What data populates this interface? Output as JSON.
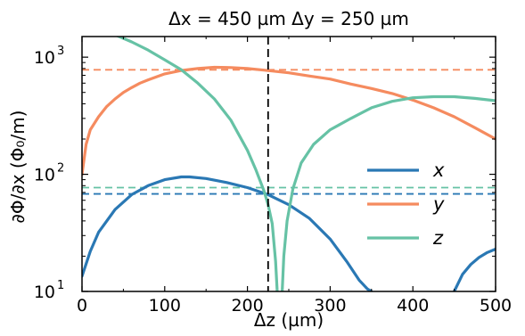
{
  "chart_data": {
    "type": "line",
    "title": "Δx = 450 µm  Δy = 250 µm",
    "xlabel": "Δz (µm)",
    "ylabel": "∂Φ/∂x (Φ₀/m)",
    "xlim": [
      0,
      500
    ],
    "ylim": [
      10,
      1500
    ],
    "yscale": "log",
    "x_ticks": [
      "0",
      "100",
      "200",
      "300",
      "400",
      "500"
    ],
    "y_ticks": [
      {
        "base": "10",
        "exp": "1"
      },
      {
        "base": "10",
        "exp": "2"
      },
      {
        "base": "10",
        "exp": "3"
      }
    ],
    "legend_position": "center-right",
    "vline": {
      "x": 225,
      "color": "#000000",
      "style": "dashed"
    },
    "series": [
      {
        "name": "x",
        "color": "#2a78b4",
        "segments": [
          {
            "x": [
              0,
              10,
              20,
              40,
              60,
              80,
              100,
              120,
              130,
              150,
              175,
              200,
              225,
              250,
              275,
              300,
              320,
              335,
              345,
              350
            ],
            "y": [
              13.5,
              22,
              32,
              50,
              67,
              80,
              90,
              95,
              95,
              92,
              85,
              77,
              67,
              55,
              42,
              28,
              18,
              12.5,
              10.5,
              10
            ]
          },
          {
            "x": [
              450,
              460,
              470,
              480,
              490,
              500
            ],
            "y": [
              10,
              14,
              17,
              19.5,
              21.5,
              23
            ]
          }
        ],
        "reference": 68
      },
      {
        "name": "y",
        "color": "#f58b5f",
        "segments": [
          {
            "x": [
              0,
              5,
              10,
              20,
              30,
              40,
              50,
              60,
              70,
              80,
              90,
              100,
              120,
              140,
              160,
              180,
              200,
              220,
              250,
              275,
              300,
              325,
              350,
              375,
              400,
              425,
              450,
              475,
              500
            ],
            "y": [
              100,
              180,
              240,
              310,
              380,
              440,
              500,
              550,
              600,
              640,
              680,
              720,
              770,
              800,
              820,
              815,
              800,
              775,
              735,
              690,
              650,
              590,
              540,
              490,
              430,
              370,
              310,
              250,
              200
            ]
          }
        ],
        "reference": 780
      },
      {
        "name": "z",
        "color": "#66c2a5",
        "segments": [
          {
            "x": [
              0,
              20,
              40,
              60,
              80,
              100,
              120,
              140,
              160,
              180,
              200,
              210,
              220,
              225,
              230,
              234,
              236
            ],
            "y": [
              1800,
              1700,
              1550,
              1350,
              1150,
              950,
              780,
              600,
              440,
              290,
              160,
              110,
              72,
              55,
              38,
              18,
              10
            ]
          },
          {
            "x": [
              242,
              244,
              248,
              255,
              265,
              280,
              300,
              325,
              350,
              375,
              400,
              425,
              450,
              475,
              500
            ],
            "y": [
              10,
              20,
              40,
              75,
              125,
              180,
              240,
              300,
              370,
              420,
              450,
              460,
              460,
              445,
              425
            ]
          }
        ],
        "reference": 77
      }
    ]
  }
}
